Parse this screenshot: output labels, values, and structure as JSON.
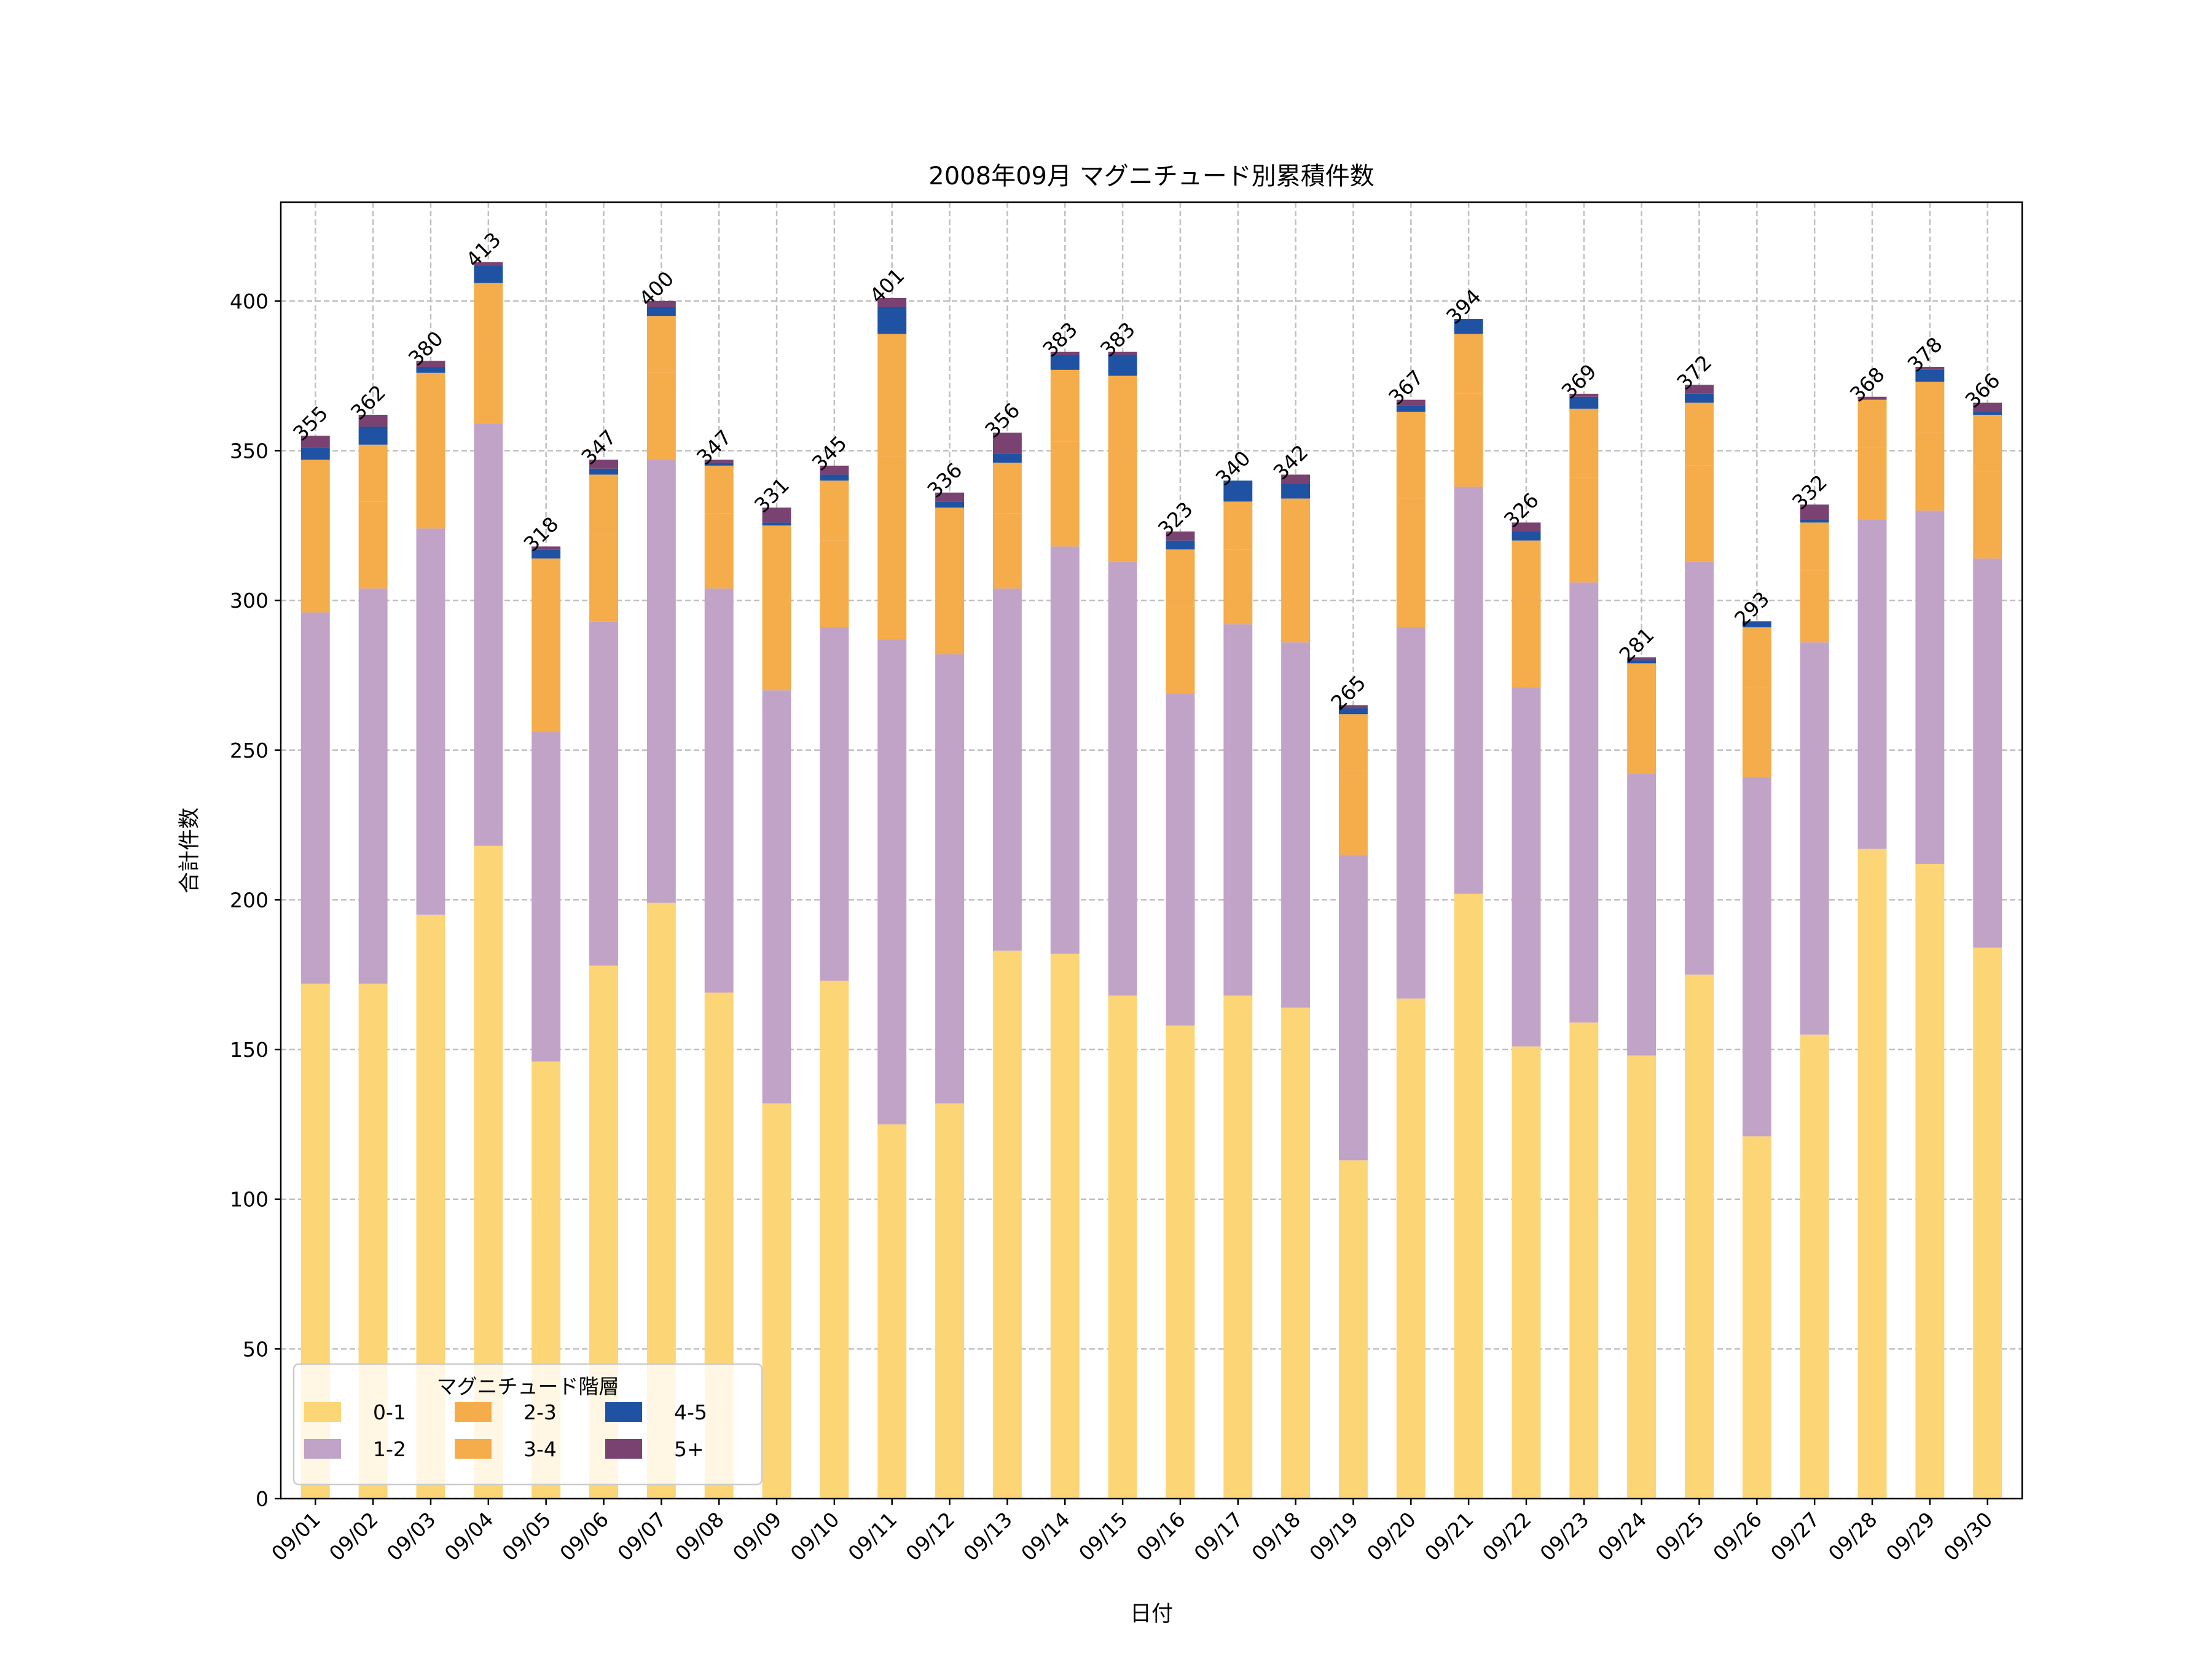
{
  "chart_data": {
    "type": "bar",
    "stacked": true,
    "title": "2008年09月 マグニチュード別累積件数",
    "xlabel": "日付",
    "ylabel": "合計件数",
    "ylim": [
      0,
      433
    ],
    "yticks": [
      0,
      50,
      100,
      150,
      200,
      250,
      300,
      350,
      400
    ],
    "grid": true,
    "legend": {
      "title": "マグニチュード階層",
      "placement": "lower-left",
      "columns": 3
    },
    "categories": [
      "09/01",
      "09/02",
      "09/03",
      "09/04",
      "09/05",
      "09/06",
      "09/07",
      "09/08",
      "09/09",
      "09/10",
      "09/11",
      "09/12",
      "09/13",
      "09/14",
      "09/15",
      "09/16",
      "09/17",
      "09/18",
      "09/19",
      "09/20",
      "09/21",
      "09/22",
      "09/23",
      "09/24",
      "09/25",
      "09/26",
      "09/27",
      "09/28",
      "09/29",
      "09/30"
    ],
    "series": [
      {
        "name": "0-1",
        "color": "#FCD576",
        "values": [
          172,
          172,
          195,
          218,
          146,
          178,
          199,
          169,
          132,
          173,
          125,
          132,
          183,
          182,
          168,
          158,
          168,
          164,
          113,
          167,
          202,
          151,
          159,
          148,
          175,
          121,
          155,
          217,
          212,
          184
        ]
      },
      {
        "name": "1-2",
        "color": "#C0A3C7",
        "values": [
          124,
          132,
          129,
          141,
          110,
          115,
          148,
          135,
          138,
          118,
          162,
          150,
          121,
          136,
          145,
          111,
          124,
          122,
          102,
          124,
          136,
          120,
          147,
          94,
          138,
          120,
          131,
          110,
          118,
          130
        ]
      },
      {
        "name": "2-3",
        "color": "#F5AC4A",
        "values": [
          31,
          29,
          31,
          28,
          35,
          29,
          29,
          25,
          33,
          29,
          61,
          29,
          25,
          35,
          37,
          29,
          25,
          29,
          28,
          43,
          31,
          29,
          35,
          22,
          32,
          30,
          24,
          24,
          26,
          29
        ]
      },
      {
        "name": "3-4",
        "color": "#F5AC4A",
        "values": [
          20,
          19,
          21,
          19,
          23,
          20,
          19,
          16,
          22,
          20,
          41,
          20,
          17,
          24,
          25,
          19,
          16,
          19,
          19,
          29,
          20,
          20,
          23,
          15,
          21,
          20,
          16,
          16,
          17,
          19
        ]
      },
      {
        "name": "4-5",
        "color": "#1F52A3",
        "values": [
          4,
          6,
          2,
          6,
          3,
          2,
          3,
          1,
          1,
          2,
          9,
          2,
          3,
          5,
          7,
          3,
          7,
          5,
          2,
          2,
          5,
          3,
          4,
          1,
          3,
          2,
          1,
          0,
          4,
          1
        ]
      },
      {
        "name": "5+",
        "color": "#7A4270",
        "values": [
          4,
          4,
          2,
          1,
          1,
          3,
          2,
          1,
          5,
          3,
          3,
          3,
          7,
          1,
          1,
          3,
          0,
          3,
          1,
          2,
          0,
          3,
          1,
          1,
          3,
          0,
          5,
          1,
          1,
          3
        ]
      }
    ],
    "totals": [
      355,
      362,
      380,
      413,
      318,
      347,
      400,
      347,
      331,
      345,
      401,
      336,
      356,
      383,
      383,
      323,
      340,
      342,
      265,
      367,
      394,
      326,
      369,
      281,
      372,
      293,
      332,
      368,
      378,
      366
    ]
  }
}
